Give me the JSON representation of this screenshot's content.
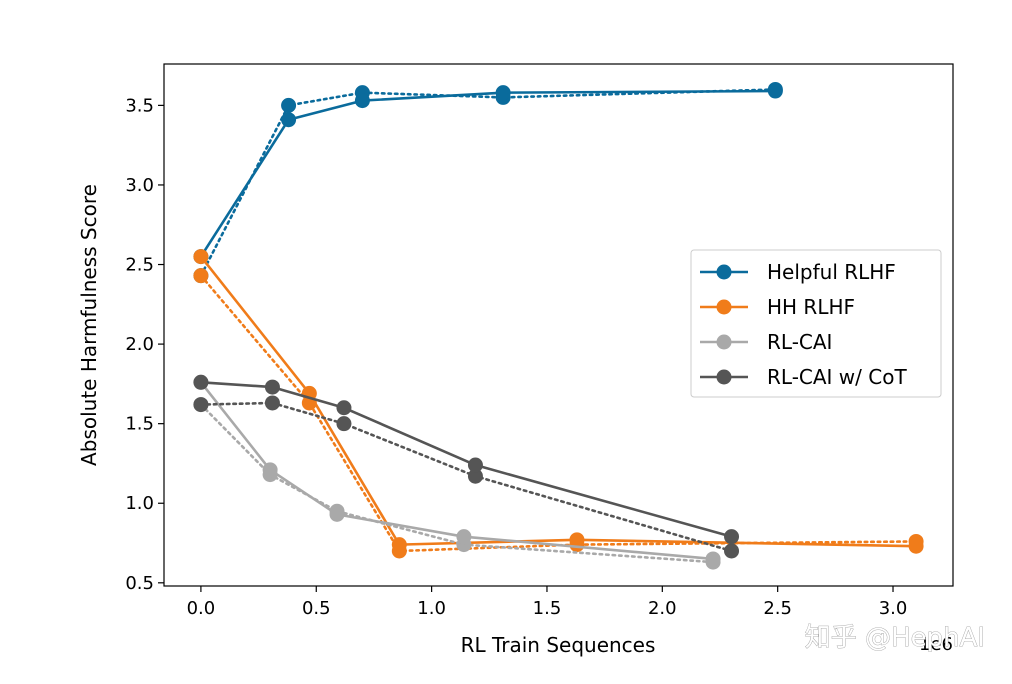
{
  "chart_data": {
    "type": "line",
    "title": "",
    "xlabel": "RL Train Sequences",
    "ylabel": "Absolute Harmfulness Score",
    "x_offset_text": "1e6",
    "xlim": [
      -0.16,
      3.26
    ],
    "ylim": [
      0.48,
      3.76
    ],
    "xticks": [
      0.0,
      0.5,
      1.0,
      1.5,
      2.0,
      2.5,
      3.0
    ],
    "xtick_labels": [
      "0.0",
      "0.5",
      "1.0",
      "1.5",
      "2.0",
      "2.5",
      "3.0"
    ],
    "yticks": [
      0.5,
      1.0,
      1.5,
      2.0,
      2.5,
      3.0,
      3.5
    ],
    "ytick_labels": [
      "0.5",
      "1.0",
      "1.5",
      "2.0",
      "2.5",
      "3.0",
      "3.5"
    ],
    "grid": false,
    "legend_position": "center-right",
    "series": [
      {
        "name": "Helpful RLHF",
        "color": "#0a6b9c",
        "solid": [
          [
            0.0,
            2.55
          ],
          [
            0.38,
            3.41
          ],
          [
            0.7,
            3.53
          ],
          [
            1.31,
            3.58
          ],
          [
            2.49,
            3.59
          ]
        ],
        "dotted": [
          [
            0.0,
            2.43
          ],
          [
            0.38,
            3.5
          ],
          [
            0.7,
            3.58
          ],
          [
            1.31,
            3.55
          ],
          [
            2.49,
            3.6
          ]
        ]
      },
      {
        "name": "HH RLHF",
        "color": "#f07c1a",
        "solid": [
          [
            0.0,
            2.55
          ],
          [
            0.47,
            1.69
          ],
          [
            0.86,
            0.74
          ],
          [
            1.63,
            0.77
          ],
          [
            3.1,
            0.73
          ]
        ],
        "dotted": [
          [
            0.0,
            2.43
          ],
          [
            0.47,
            1.63
          ],
          [
            0.86,
            0.7
          ],
          [
            1.63,
            0.74
          ],
          [
            3.1,
            0.76
          ]
        ]
      },
      {
        "name": "RL-CAI",
        "color": "#a9a9a9",
        "solid": [
          [
            0.0,
            1.76
          ],
          [
            0.3,
            1.21
          ],
          [
            0.59,
            0.93
          ],
          [
            1.14,
            0.79
          ],
          [
            2.22,
            0.65
          ]
        ],
        "dotted": [
          [
            0.0,
            1.62
          ],
          [
            0.3,
            1.18
          ],
          [
            0.59,
            0.95
          ],
          [
            1.14,
            0.74
          ],
          [
            2.22,
            0.63
          ]
        ]
      },
      {
        "name": "RL-CAI w/ CoT",
        "color": "#555555",
        "solid": [
          [
            0.0,
            1.76
          ],
          [
            0.31,
            1.73
          ],
          [
            0.62,
            1.6
          ],
          [
            1.19,
            1.24
          ],
          [
            2.3,
            0.79
          ]
        ],
        "dotted": [
          [
            0.0,
            1.62
          ],
          [
            0.31,
            1.63
          ],
          [
            0.62,
            1.5
          ],
          [
            1.19,
            1.17
          ],
          [
            2.3,
            0.7
          ]
        ]
      }
    ]
  },
  "watermark": {
    "text": "知乎 @HephAI",
    "ghost_color": "#ffffff"
  }
}
